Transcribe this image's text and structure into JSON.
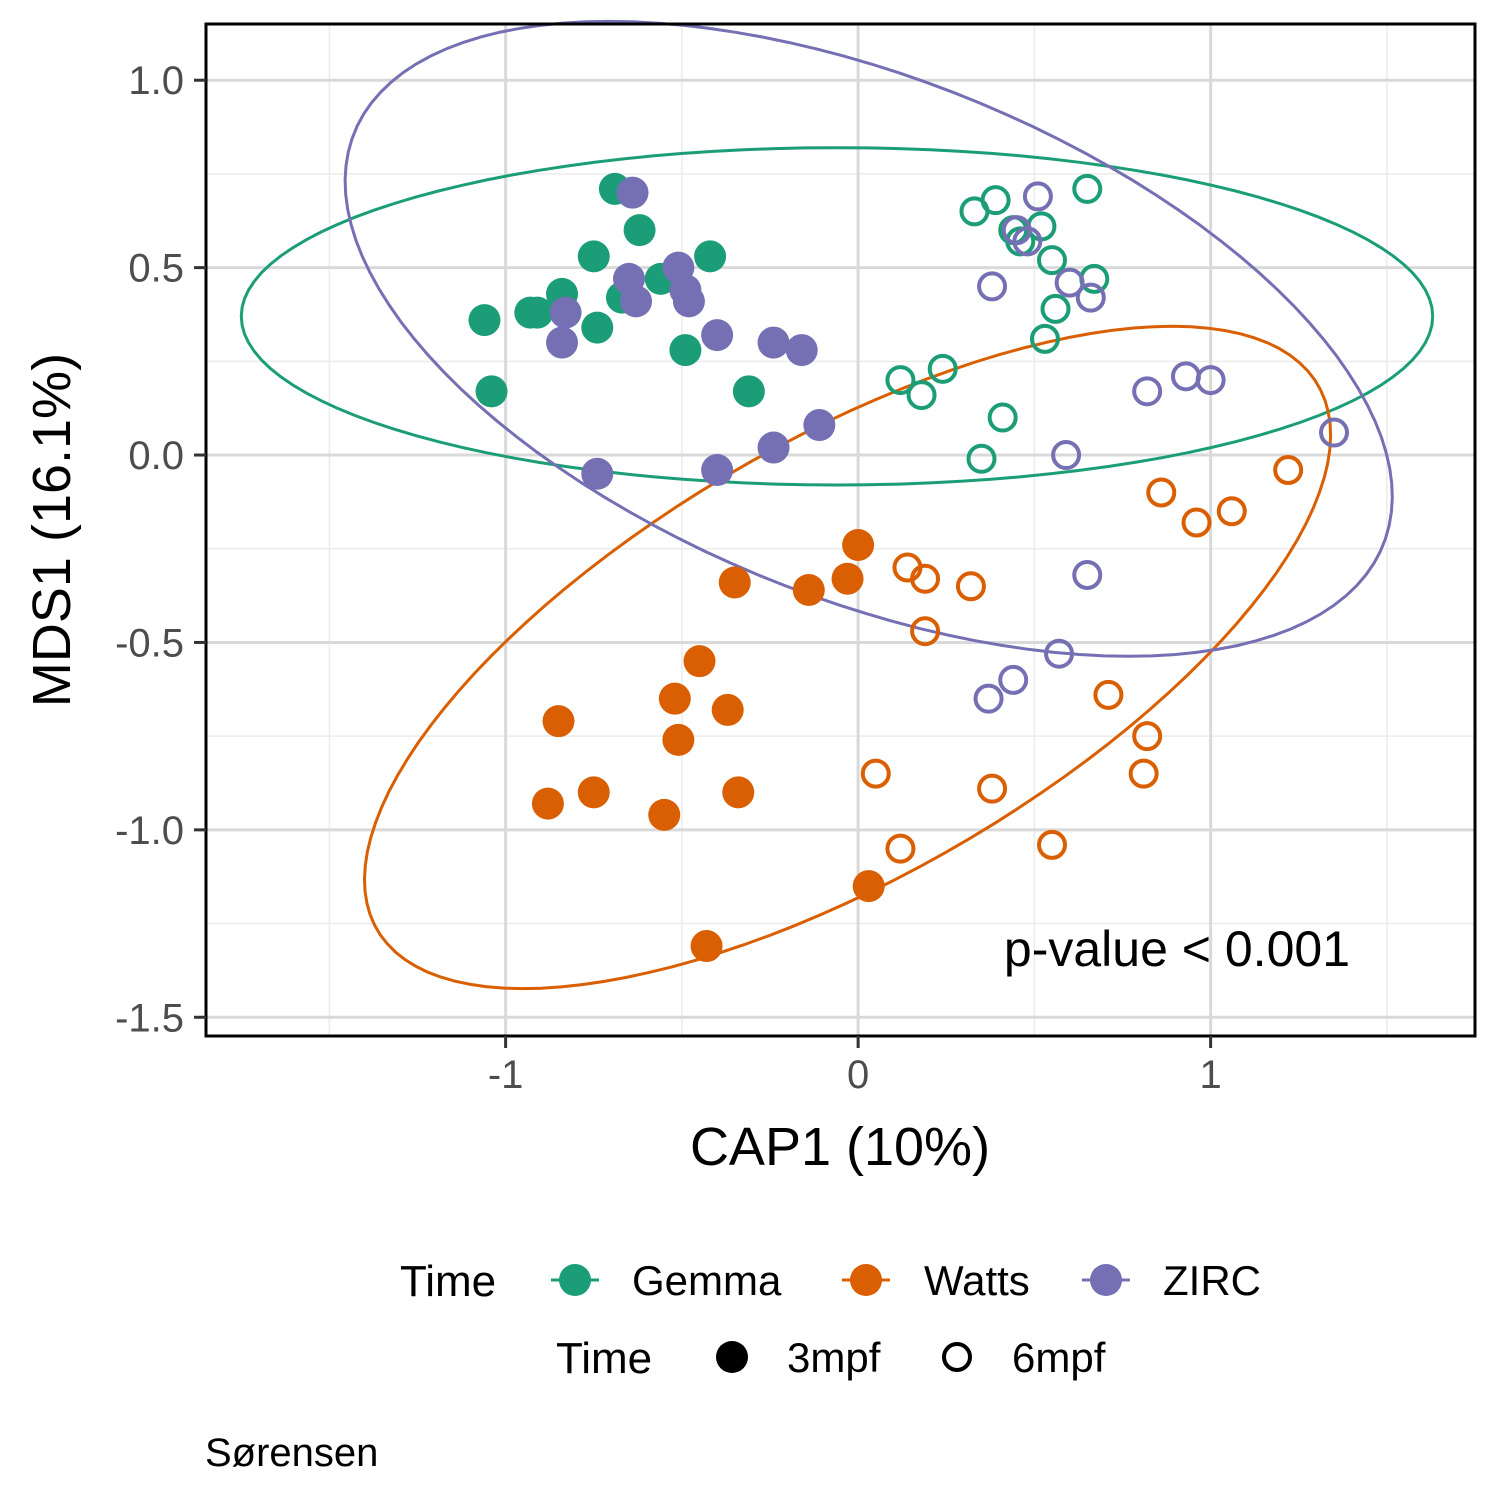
{
  "chart_data": {
    "type": "scatter",
    "xlabel": "CAP1 (10%)",
    "ylabel": "MDS1 (16.1%)",
    "xlim": [
      -1.85,
      1.75
    ],
    "ylim": [
      -1.55,
      1.15
    ],
    "x_ticks": [
      -1,
      0,
      1
    ],
    "x_tick_labels": [
      "-1",
      "0",
      "1"
    ],
    "y_ticks": [
      1.0,
      0.5,
      0.0,
      -0.5,
      -1.0,
      -1.5
    ],
    "y_tick_labels": [
      "1.0",
      "0.5",
      "0.0",
      "-0.5",
      "-1.0",
      "-1.5"
    ],
    "grid": true,
    "legend_position": "bottom",
    "annotation": "p-value < 0.001",
    "caption": "Sørensen",
    "color_legend": {
      "title": "Time",
      "entries": [
        {
          "label": "Gemma",
          "color": "#1B9E77"
        },
        {
          "label": "Watts",
          "color": "#D95F02"
        },
        {
          "label": "ZIRC",
          "color": "#7570B3"
        }
      ]
    },
    "shape_legend": {
      "title": "Time",
      "entries": [
        {
          "label": "3mpf",
          "shape": "filled-circle"
        },
        {
          "label": "6mpf",
          "shape": "open-circle"
        }
      ]
    },
    "series": [
      {
        "name": "Gemma",
        "color": "#1B9E77",
        "ellipse": {
          "cx": -0.06,
          "cy": 0.37,
          "rx": 1.69,
          "ry": 0.45,
          "angle_deg": 0
        },
        "points_3mpf": [
          [
            -0.69,
            0.71
          ],
          [
            -0.62,
            0.6
          ],
          [
            -0.75,
            0.53
          ],
          [
            -0.42,
            0.53
          ],
          [
            -0.56,
            0.47
          ],
          [
            -0.67,
            0.42
          ],
          [
            -0.84,
            0.43
          ],
          [
            -0.93,
            0.38
          ],
          [
            -0.91,
            0.38
          ],
          [
            -1.06,
            0.36
          ],
          [
            -0.74,
            0.34
          ],
          [
            -0.49,
            0.28
          ],
          [
            -1.04,
            0.17
          ],
          [
            -0.31,
            0.17
          ]
        ],
        "points_6mpf": [
          [
            0.65,
            0.71
          ],
          [
            0.39,
            0.68
          ],
          [
            0.33,
            0.65
          ],
          [
            0.44,
            0.6
          ],
          [
            0.52,
            0.61
          ],
          [
            0.46,
            0.57
          ],
          [
            0.55,
            0.52
          ],
          [
            0.67,
            0.47
          ],
          [
            0.56,
            0.39
          ],
          [
            0.53,
            0.31
          ],
          [
            0.24,
            0.23
          ],
          [
            0.12,
            0.2
          ],
          [
            0.18,
            0.16
          ],
          [
            0.41,
            0.1
          ],
          [
            0.35,
            -0.01
          ]
        ]
      },
      {
        "name": "Watts",
        "color": "#D95F02",
        "ellipse": {
          "cx": -0.03,
          "cy": -0.54,
          "rx": 1.52,
          "ry": 0.59,
          "angle_deg": 28
        },
        "points_3mpf": [
          [
            0.0,
            -0.24
          ],
          [
            -0.03,
            -0.33
          ],
          [
            -0.35,
            -0.34
          ],
          [
            -0.14,
            -0.36
          ],
          [
            -0.45,
            -0.55
          ],
          [
            -0.52,
            -0.65
          ],
          [
            -0.37,
            -0.68
          ],
          [
            -0.85,
            -0.71
          ],
          [
            -0.51,
            -0.76
          ],
          [
            -0.75,
            -0.9
          ],
          [
            -0.34,
            -0.9
          ],
          [
            -0.88,
            -0.93
          ],
          [
            -0.55,
            -0.96
          ],
          [
            0.03,
            -1.15
          ],
          [
            -0.43,
            -1.31
          ]
        ],
        "points_6mpf": [
          [
            1.22,
            -0.04
          ],
          [
            0.86,
            -0.1
          ],
          [
            0.96,
            -0.18
          ],
          [
            1.06,
            -0.15
          ],
          [
            0.14,
            -0.3
          ],
          [
            0.19,
            -0.33
          ],
          [
            0.32,
            -0.35
          ],
          [
            0.19,
            -0.47
          ],
          [
            0.71,
            -0.64
          ],
          [
            0.82,
            -0.75
          ],
          [
            0.81,
            -0.85
          ],
          [
            0.05,
            -0.85
          ],
          [
            0.38,
            -0.89
          ],
          [
            0.12,
            -1.05
          ],
          [
            0.55,
            -1.04
          ]
        ]
      },
      {
        "name": "ZIRC",
        "color": "#7570B3",
        "ellipse": {
          "cx": 0.03,
          "cy": 0.31,
          "rx": 1.56,
          "ry": 0.7,
          "angle_deg": -20
        },
        "points_3mpf": [
          [
            -0.64,
            0.7
          ],
          [
            -0.51,
            0.5
          ],
          [
            -0.65,
            0.47
          ],
          [
            -0.49,
            0.44
          ],
          [
            -0.48,
            0.41
          ],
          [
            -0.63,
            0.41
          ],
          [
            -0.83,
            0.38
          ],
          [
            -0.84,
            0.3
          ],
          [
            -0.4,
            0.32
          ],
          [
            -0.24,
            0.3
          ],
          [
            -0.16,
            0.28
          ],
          [
            -0.11,
            0.08
          ],
          [
            -0.24,
            0.02
          ],
          [
            -0.74,
            -0.05
          ],
          [
            -0.4,
            -0.04
          ]
        ],
        "points_6mpf": [
          [
            0.51,
            0.69
          ],
          [
            0.45,
            0.6
          ],
          [
            0.48,
            0.57
          ],
          [
            0.6,
            0.46
          ],
          [
            0.66,
            0.42
          ],
          [
            0.38,
            0.45
          ],
          [
            0.82,
            0.17
          ],
          [
            0.93,
            0.21
          ],
          [
            1.0,
            0.2
          ],
          [
            1.35,
            0.06
          ],
          [
            0.59,
            0.0
          ],
          [
            0.65,
            -0.32
          ],
          [
            0.57,
            -0.53
          ],
          [
            0.44,
            -0.6
          ],
          [
            0.37,
            -0.65
          ]
        ]
      }
    ]
  }
}
